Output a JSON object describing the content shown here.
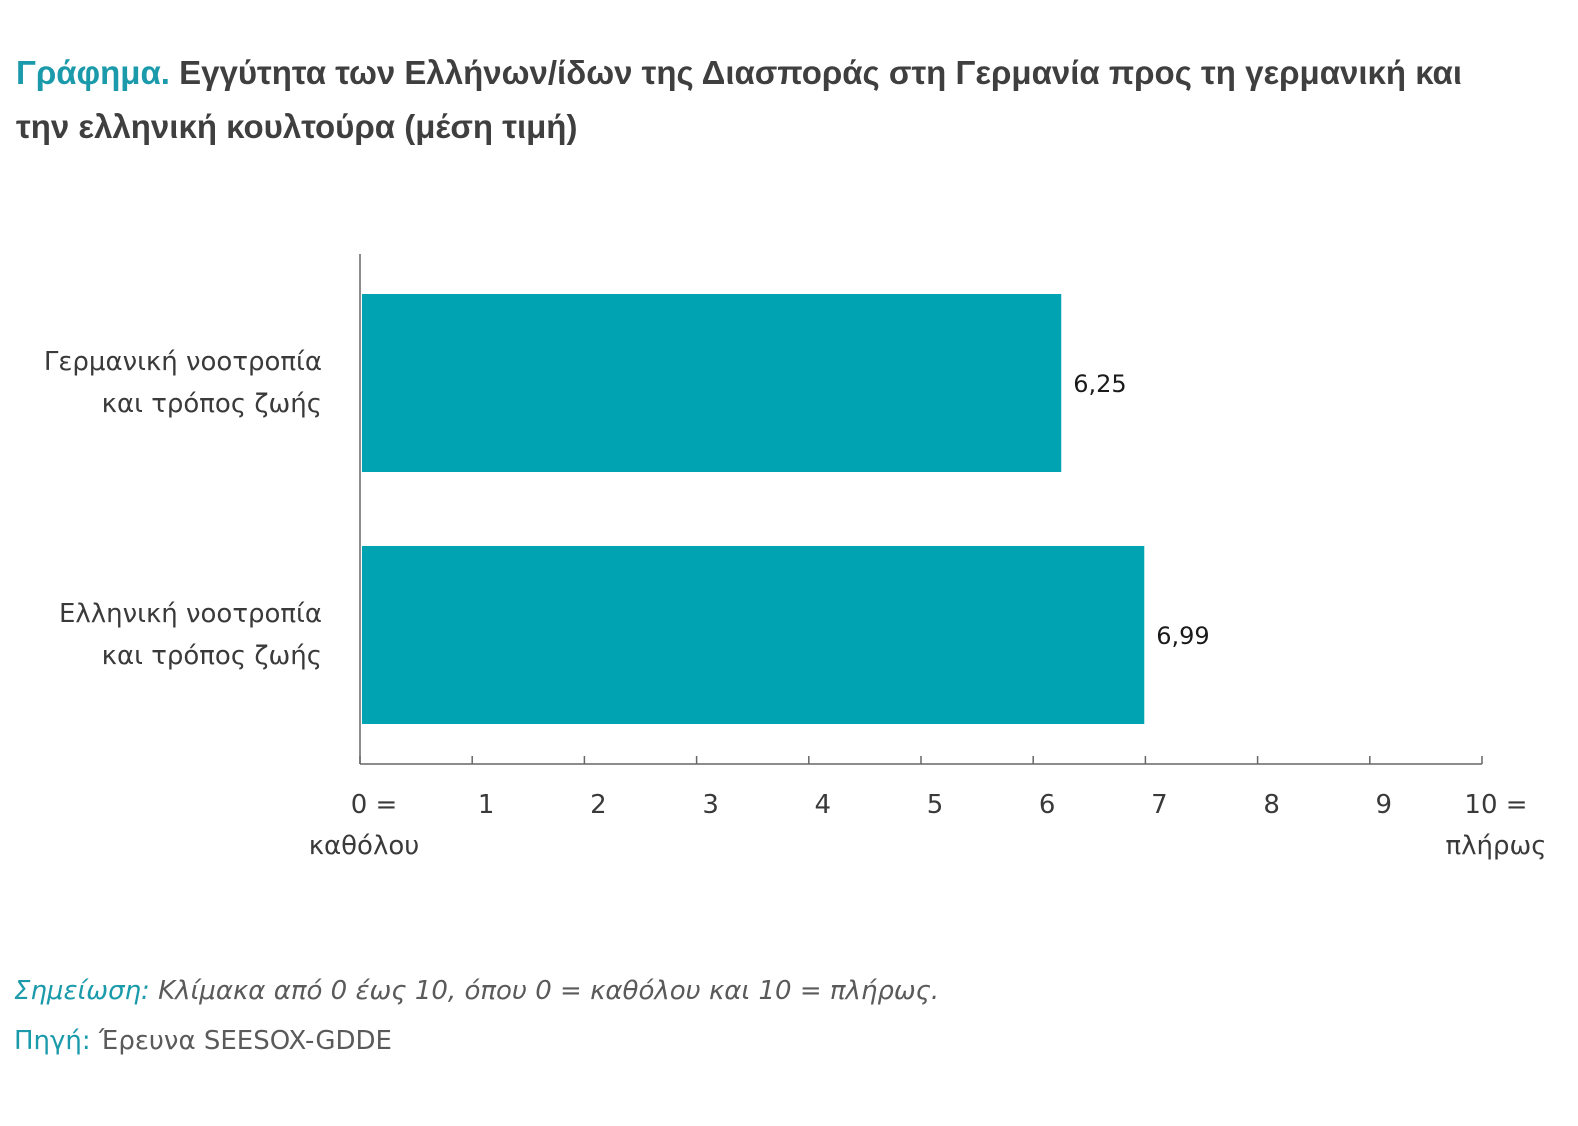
{
  "title": {
    "lead": "Γράφημα.",
    "text": "Εγγύτητα των Ελλήνων/ίδων της Διασποράς στη Γερμανία προς τη γερμανική και την ελληνική κουλτούρα (μέση τιμή)"
  },
  "chart_data": {
    "type": "bar",
    "orientation": "horizontal",
    "categories": [
      [
        "Γερμανική νοοτροπία",
        "και τρόπος ζωής"
      ],
      [
        "Ελληνική νοοτροπία",
        "και τρόπος ζωής"
      ]
    ],
    "values": [
      6.25,
      6.99
    ],
    "value_labels": [
      "6,25",
      "6,99"
    ],
    "xlim": [
      0,
      10
    ],
    "ticks": [
      {
        "value": 0,
        "label": [
          "0 =",
          "καθόλου"
        ]
      },
      {
        "value": 1,
        "label": [
          "1"
        ]
      },
      {
        "value": 2,
        "label": [
          "2"
        ]
      },
      {
        "value": 3,
        "label": [
          "3"
        ]
      },
      {
        "value": 4,
        "label": [
          "4"
        ]
      },
      {
        "value": 5,
        "label": [
          "5"
        ]
      },
      {
        "value": 6,
        "label": [
          "6"
        ]
      },
      {
        "value": 7,
        "label": [
          "7"
        ]
      },
      {
        "value": 8,
        "label": [
          "8"
        ]
      },
      {
        "value": 9,
        "label": [
          "9"
        ]
      },
      {
        "value": 10,
        "label": [
          "10 =",
          "πλήρως"
        ]
      }
    ],
    "grid": false,
    "legend": "none",
    "bar_color": "#00a3b1",
    "xlabel": "",
    "ylabel": ""
  },
  "note": {
    "label": "Σημείωση:",
    "text": "Κλίμακα από 0 έως 10, όπου 0 = καθόλου και 10 = πλήρως."
  },
  "source": {
    "label": "Πηγή:",
    "text": "Έρευνα SEESOX-GDDE"
  },
  "colors": {
    "accent": "#1a9aaa",
    "bar": "#00a3b1",
    "axis": "#666666"
  }
}
